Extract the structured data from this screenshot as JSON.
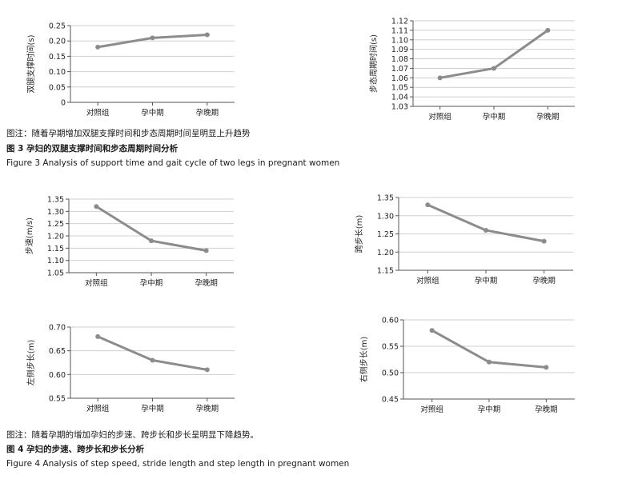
{
  "chart_data": [
    {
      "type": "line",
      "categories": [
        "对照组",
        "孕中期",
        "孕晚期"
      ],
      "values": [
        0.18,
        0.21,
        0.22
      ],
      "ylabel": "双腿支撑时间(s)",
      "ylim": [
        0,
        0.25
      ],
      "yticks": [
        "0",
        "0.05",
        "0.10",
        "0.15",
        "0.20",
        "0.25"
      ]
    },
    {
      "type": "line",
      "categories": [
        "对照组",
        "孕中期",
        "孕晚期"
      ],
      "values": [
        1.06,
        1.07,
        1.11
      ],
      "ylabel": "步态周期时间(s)",
      "ylim": [
        1.03,
        1.12
      ],
      "yticks": [
        "1.03",
        "1.04",
        "1.05",
        "1.06",
        "1.07",
        "1.08",
        "1.09",
        "1.10",
        "1.11",
        "1.12"
      ]
    },
    {
      "type": "line",
      "categories": [
        "对照组",
        "孕中期",
        "孕晚期"
      ],
      "values": [
        1.32,
        1.18,
        1.14
      ],
      "ylabel": "步速(m/s)",
      "ylim": [
        1.05,
        1.35
      ],
      "yticks": [
        "1.05",
        "1.10",
        "1.15",
        "1.20",
        "1.25",
        "1.30",
        "1.35"
      ]
    },
    {
      "type": "line",
      "categories": [
        "对照组",
        "孕中期",
        "孕晚期"
      ],
      "values": [
        1.33,
        1.26,
        1.23
      ],
      "ylabel": "跨步长(m)",
      "ylim": [
        1.15,
        1.35
      ],
      "yticks": [
        "1.15",
        "1.20",
        "1.25",
        "1.30",
        "1.35"
      ]
    },
    {
      "type": "line",
      "categories": [
        "对照组",
        "孕中期",
        "孕晚期"
      ],
      "values": [
        0.68,
        0.63,
        0.61
      ],
      "ylabel": "左侧步长(m)",
      "ylim": [
        0.55,
        0.7
      ],
      "yticks": [
        "0.55",
        "0.60",
        "0.65",
        "0.70"
      ]
    },
    {
      "type": "line",
      "categories": [
        "对照组",
        "孕中期",
        "孕晚期"
      ],
      "values": [
        0.58,
        0.52,
        0.51
      ],
      "ylabel": "右侧步长(m)",
      "ylim": [
        0.45,
        0.6
      ],
      "yticks": [
        "0.45",
        "0.50",
        "0.55",
        "0.60"
      ]
    }
  ],
  "captions": {
    "fig3_note": "图注：随着孕期增加双腿支撑时间和步态周期时间呈明显上升趋势",
    "fig3_title_cn": "图 3   孕妇的双腿支撑时间和步态周期时间分析",
    "fig3_title_en": "Figure 3    Analysis of support time and gait cycle of two legs in pregnant women",
    "fig4_note": "图注：随着孕期的增加孕妇的步速、跨步长和步长呈明显下降趋势。",
    "fig4_title_cn": "图 4   孕妇的步速、跨步长和步长分析",
    "fig4_title_en": "Figure 4    Analysis of step speed, stride length and step length in pregnant women"
  },
  "colors": {
    "series": "#8c8c8c",
    "grid": "#cfcfcf",
    "axis": "#555555"
  }
}
